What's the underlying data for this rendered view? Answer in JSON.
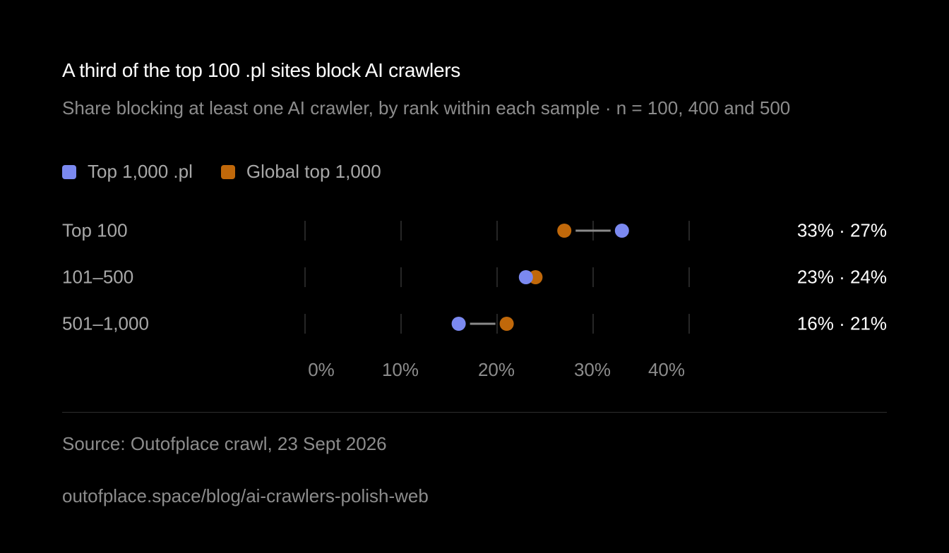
{
  "chart_data": {
    "type": "dot",
    "title": "A third of the top 100 .pl sites block AI crawlers",
    "subtitle": "Share blocking at least one AI crawler, by rank within each sample · n = 100, 400 and 500",
    "categories": [
      "Top 100",
      "101–500",
      "501–1,000"
    ],
    "series": [
      {
        "name": "Top 1,000 .pl",
        "color": "#7b89f0",
        "values": [
          33,
          23,
          16
        ]
      },
      {
        "name": "Global top 1,000",
        "color": "#c0680a",
        "values": [
          27,
          24,
          21
        ]
      }
    ],
    "value_labels": [
      "33% · 27%",
      "23% · 24%",
      "16% · 21%"
    ],
    "x_ticks": [
      0,
      10,
      20,
      30,
      40
    ],
    "x_tick_labels": [
      "0%",
      "10%",
      "20%",
      "30%",
      "40%"
    ],
    "xlim": [
      0,
      40
    ],
    "grid": true,
    "legend": "top-left"
  },
  "footer": {
    "source": "Source: Outofplace crawl, 23 Sept 2026",
    "url": "outofplace.space/blog/ai-crawlers-polish-web"
  },
  "colors": {
    "background": "#000000",
    "connector": "#8a8a8a",
    "grid": "#333333"
  }
}
